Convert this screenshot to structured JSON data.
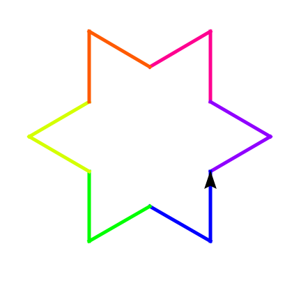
{
  "diagram": {
    "background": "#ffffff",
    "segments": [
      {
        "name": "segment-magenta-outer",
        "color": "#ff0090"
      },
      {
        "name": "segment-magenta-inner",
        "color": "#ff0090"
      },
      {
        "name": "segment-violet-outer",
        "color": "#9000ff"
      },
      {
        "name": "segment-violet-inner",
        "color": "#9000ff"
      },
      {
        "name": "segment-blue-outer",
        "color": "#0000ff"
      },
      {
        "name": "segment-blue-inner",
        "color": "#0000ff"
      },
      {
        "name": "segment-green-outer",
        "color": "#00ff00"
      },
      {
        "name": "segment-green-inner",
        "color": "#00ff00"
      },
      {
        "name": "segment-yellow-outer",
        "color": "#d4ff00"
      },
      {
        "name": "segment-yellow-inner",
        "color": "#d4ff00"
      },
      {
        "name": "segment-orange-outer",
        "color": "#ff5a00"
      },
      {
        "name": "segment-orange-inner",
        "color": "#ff5a00"
      }
    ],
    "turtle": {
      "name": "turtle-arrow-icon",
      "color": "#000000",
      "heading": "up"
    }
  }
}
